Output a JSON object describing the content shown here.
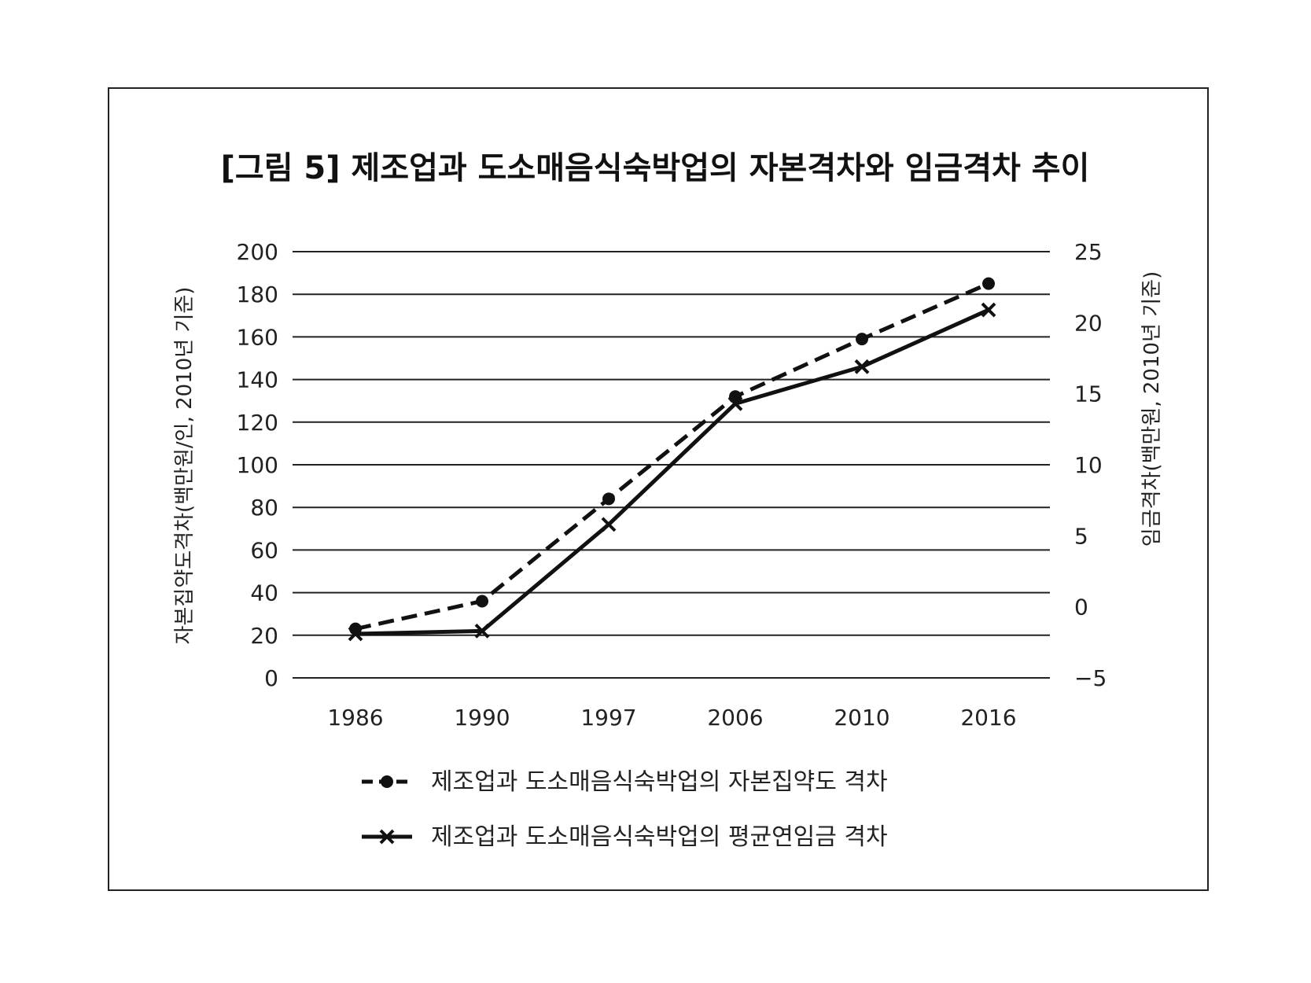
{
  "chart_data": {
    "type": "line",
    "title": "[그림 5] 제조업과 도소매음식숙박업의 자본격차와 임금격차 추이",
    "categories": [
      "1986",
      "1990",
      "1997",
      "2006",
      "2010",
      "2016"
    ],
    "ylabel": "자본집약도격차(백만원/인, 2010년 기준)",
    "ylabel_right": "임금격차(백만원, 2010년 기준)",
    "ylim": [
      0,
      200
    ],
    "ylim_right": [
      -5,
      25
    ],
    "yticks": [
      "0",
      "20",
      "40",
      "60",
      "80",
      "100",
      "120",
      "140",
      "160",
      "180",
      "200"
    ],
    "yticks_right": [
      "−5",
      "0",
      "5",
      "10",
      "15",
      "20",
      "25"
    ],
    "grid": true,
    "legend_position": "bottom",
    "series": [
      {
        "name": "제조업과 도소매음식숙박업의 자본집약도 격차",
        "axis": "left",
        "style": "dashed",
        "marker": "circle",
        "values": [
          23,
          36,
          84,
          132,
          159,
          185
        ]
      },
      {
        "name": "제조업과 도소매음식숙박업의 평균연임금 격차",
        "axis": "right",
        "style": "solid",
        "marker": "x",
        "values": [
          -1.9,
          -1.7,
          5.8,
          14.3,
          16.9,
          20.9
        ]
      }
    ],
    "colors": {
      "line": "#111111",
      "grid": "#222222",
      "frame": "#222222"
    }
  }
}
